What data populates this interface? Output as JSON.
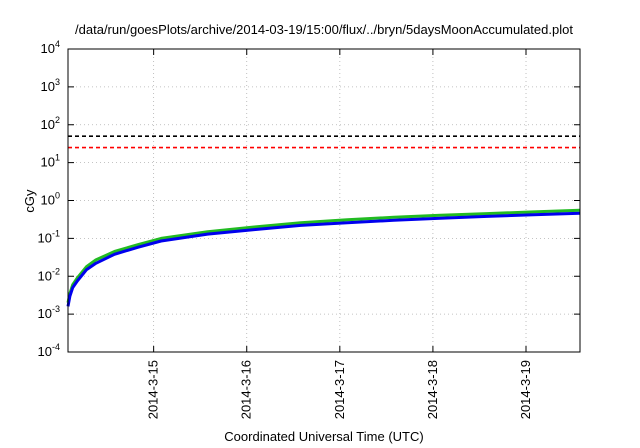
{
  "chart_data": {
    "type": "line",
    "title": "/data/run/goesPlots/archive/2014-03-19/15:00/flux/../bryn/5daysMoonAccumulated.plot",
    "xlabel": "Coordinated Universal Time (UTC)",
    "ylabel": "cGy",
    "y_scale": "log",
    "ylim": [
      0.0001,
      10000
    ],
    "xlim_days": [
      0,
      5.5
    ],
    "grid": true,
    "y_ticks": [
      {
        "base": "10",
        "exp": "-4",
        "value": 0.0001
      },
      {
        "base": "10",
        "exp": "-3",
        "value": 0.001
      },
      {
        "base": "10",
        "exp": "-2",
        "value": 0.01
      },
      {
        "base": "10",
        "exp": "-1",
        "value": 0.1
      },
      {
        "base": "10",
        "exp": "0",
        "value": 1
      },
      {
        "base": "10",
        "exp": "1",
        "value": 10
      },
      {
        "base": "10",
        "exp": "2",
        "value": 100
      },
      {
        "base": "10",
        "exp": "3",
        "value": 1000
      },
      {
        "base": "10",
        "exp": "4",
        "value": 10000
      }
    ],
    "x_ticks": [
      {
        "label": "2014-3-15",
        "day": 0.92
      },
      {
        "label": "2014-3-16",
        "day": 1.92
      },
      {
        "label": "2014-3-17",
        "day": 2.92
      },
      {
        "label": "2014-3-18",
        "day": 3.92
      },
      {
        "label": "2014-3-19",
        "day": 4.92
      }
    ],
    "thresholds": [
      {
        "value": 50,
        "color": "#000000",
        "style": "dashed"
      },
      {
        "value": 25,
        "color": "#ff0000",
        "style": "dashed"
      }
    ],
    "series": [
      {
        "color": "#22bb22",
        "x": [
          0,
          0.02,
          0.05,
          0.1,
          0.2,
          0.3,
          0.5,
          0.75,
          1.0,
          1.5,
          2.0,
          2.5,
          3.0,
          3.5,
          4.0,
          4.5,
          5.0,
          5.5
        ],
        "y": [
          0.002,
          0.0035,
          0.006,
          0.009,
          0.018,
          0.027,
          0.045,
          0.068,
          0.1,
          0.15,
          0.2,
          0.26,
          0.31,
          0.36,
          0.41,
          0.45,
          0.5,
          0.55
        ]
      },
      {
        "color": "#0000ee",
        "x": [
          0,
          0.02,
          0.05,
          0.1,
          0.2,
          0.3,
          0.5,
          0.75,
          1.0,
          1.5,
          2.0,
          2.5,
          3.0,
          3.5,
          4.0,
          4.5,
          5.0,
          5.5
        ],
        "y": [
          0.0016,
          0.003,
          0.005,
          0.0075,
          0.015,
          0.022,
          0.038,
          0.058,
          0.085,
          0.13,
          0.17,
          0.22,
          0.26,
          0.3,
          0.34,
          0.38,
          0.42,
          0.46
        ]
      }
    ]
  }
}
